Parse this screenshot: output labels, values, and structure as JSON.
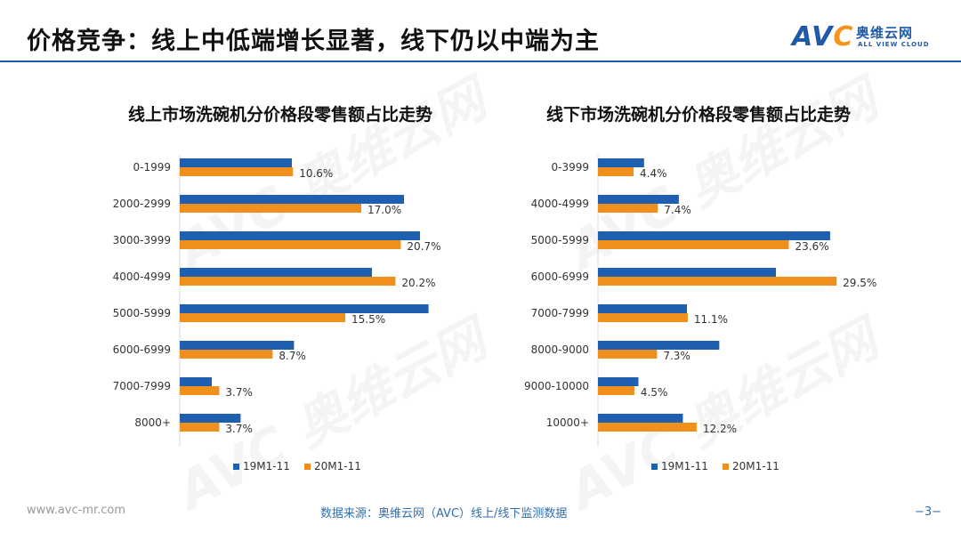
{
  "header": {
    "title": "价格竞争：线上中低端增长显著，线下仍以中端为主"
  },
  "logo": {
    "mark": "AV",
    "mark_accent": "C",
    "name_cn": "奥维云网",
    "name_en": "ALL VIEW CLOUD"
  },
  "watermarks": [
    "AVC 奥维云网",
    "ALL VIEW CLOUD"
  ],
  "chart_data": [
    {
      "type": "bar",
      "orientation": "horizontal",
      "title": "线上市场洗碗机分价格段零售额占比走势",
      "categories": [
        "0-1999",
        "2000-2999",
        "3000-3999",
        "4000-4999",
        "5000-5999",
        "6000-6999",
        "7000-7999",
        "8000+"
      ],
      "series": [
        {
          "name": "19M1-11",
          "color": "#1f5faf",
          "values": [
            10.5,
            21.0,
            22.5,
            18.0,
            23.3,
            10.7,
            3.0,
            5.7
          ]
        },
        {
          "name": "20M1-11",
          "color": "#f18f1c",
          "values": [
            10.6,
            17.0,
            20.7,
            20.2,
            15.5,
            8.7,
            3.7,
            3.7
          ]
        }
      ],
      "data_labels": [
        "10.6%",
        "17.0%",
        "20.7%",
        "20.2%",
        "15.5%",
        "8.7%",
        "3.7%",
        "3.7%"
      ],
      "xlim": [
        0,
        25
      ],
      "legend_position": "bottom"
    },
    {
      "type": "bar",
      "orientation": "horizontal",
      "title": "线下市场洗碗机分价格段零售额占比走势",
      "categories": [
        "0-3999",
        "4000-4999",
        "5000-5999",
        "6000-6999",
        "7000-7999",
        "8000-9000",
        "9000-10000",
        "10000+"
      ],
      "series": [
        {
          "name": "19M1-11",
          "color": "#1f5faf",
          "values": [
            5.7,
            10.0,
            28.7,
            22.0,
            11.0,
            15.0,
            5.0,
            10.5
          ]
        },
        {
          "name": "20M1-11",
          "color": "#f18f1c",
          "values": [
            4.4,
            7.4,
            23.6,
            29.5,
            11.1,
            7.3,
            4.5,
            12.2
          ]
        }
      ],
      "data_labels": [
        "4.4%",
        "7.4%",
        "23.6%",
        "29.5%",
        "11.1%",
        "7.3%",
        "4.5%",
        "12.2%"
      ],
      "xlim": [
        0,
        33
      ],
      "legend_position": "bottom"
    }
  ],
  "footer": {
    "site": "www.avc-mr.com",
    "source": "数据来源：奥维云网（AVC）线上/线下监测数据",
    "page": "−3−"
  }
}
